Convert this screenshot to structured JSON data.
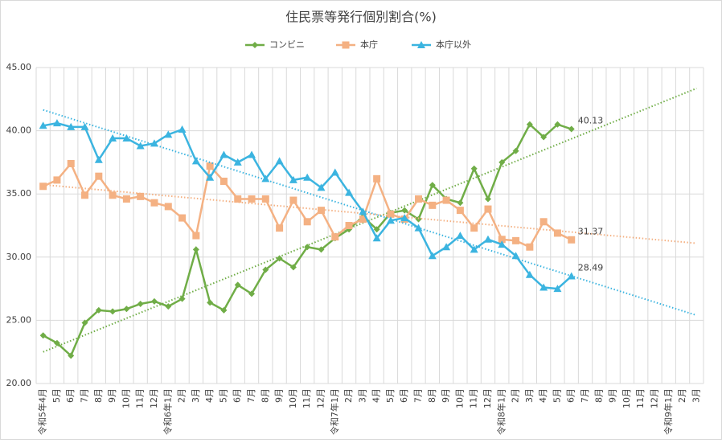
{
  "chart_data": {
    "type": "line",
    "title": "住民票等発行個別割合(%)",
    "categories": [
      "令和5年4月",
      "5月",
      "6月",
      "7月",
      "8月",
      "9月",
      "10月",
      "11月",
      "12月",
      "令和6年1月",
      "2月",
      "3月",
      "4月",
      "5月",
      "6月",
      "7月",
      "8月",
      "9月",
      "10月",
      "11月",
      "12月",
      "令和7年1月",
      "2月",
      "3月",
      "4月",
      "5月",
      "6月",
      "7月",
      "8月",
      "9月",
      "10月",
      "11月",
      "12月",
      "令和8年1月",
      "2月",
      "3月",
      "4月",
      "5月",
      "6月",
      "7月",
      "8月",
      "9月",
      "10月",
      "11月",
      "12月",
      "令和9年1月",
      "2月",
      "3月"
    ],
    "series": [
      {
        "name": "コンビニ",
        "color": "#70ad47",
        "marker": "diamond",
        "values": [
          23.8,
          23.2,
          22.2,
          24.8,
          25.8,
          25.7,
          25.9,
          26.3,
          26.5,
          26.1,
          26.7,
          30.6,
          26.4,
          25.8,
          27.8,
          27.1,
          29.0,
          29.9,
          29.2,
          30.8,
          30.6,
          31.5,
          32.2,
          33.2,
          32.2,
          33.5,
          33.7,
          33.0,
          35.7,
          34.6,
          34.3,
          37.0,
          34.6,
          37.5,
          38.4,
          40.5,
          39.5,
          40.5,
          40.13,
          null,
          null,
          null,
          null,
          null,
          null,
          null,
          null,
          null
        ]
      },
      {
        "name": "本庁",
        "color": "#f4b183",
        "marker": "square",
        "values": [
          35.6,
          36.1,
          37.4,
          34.9,
          36.4,
          34.9,
          34.6,
          34.8,
          34.3,
          34.0,
          33.1,
          31.7,
          37.2,
          36.0,
          34.6,
          34.6,
          34.6,
          32.3,
          34.5,
          32.8,
          33.7,
          31.6,
          32.5,
          33.0,
          36.2,
          33.4,
          33.0,
          34.6,
          34.1,
          34.5,
          33.7,
          32.3,
          33.8,
          31.4,
          31.3,
          30.8,
          32.8,
          31.9,
          31.37,
          null,
          null,
          null,
          null,
          null,
          null,
          null,
          null,
          null
        ]
      },
      {
        "name": "本庁以外",
        "color": "#3bb4e0",
        "marker": "triangle",
        "values": [
          40.4,
          40.6,
          40.3,
          40.3,
          37.7,
          39.4,
          39.4,
          38.8,
          39.0,
          39.7,
          40.1,
          37.6,
          36.3,
          38.1,
          37.5,
          38.1,
          36.2,
          37.6,
          36.1,
          36.3,
          35.5,
          36.7,
          35.1,
          33.6,
          31.5,
          32.9,
          33.1,
          32.3,
          30.1,
          30.8,
          31.7,
          30.6,
          31.4,
          31.0,
          30.1,
          28.6,
          27.6,
          27.5,
          28.49,
          null,
          null,
          null,
          null,
          null,
          null,
          null,
          null,
          null
        ]
      }
    ],
    "ylim": [
      20,
      45
    ],
    "yticks": [
      {
        "value": 20,
        "label": "20.00"
      },
      {
        "value": 25,
        "label": "25.00"
      },
      {
        "value": 30,
        "label": "30.00"
      },
      {
        "value": 35,
        "label": "35.00"
      },
      {
        "value": 40,
        "label": "40.00"
      },
      {
        "value": 45,
        "label": "45.00"
      }
    ],
    "grid": true,
    "trendline": "linear",
    "legend": "top"
  }
}
